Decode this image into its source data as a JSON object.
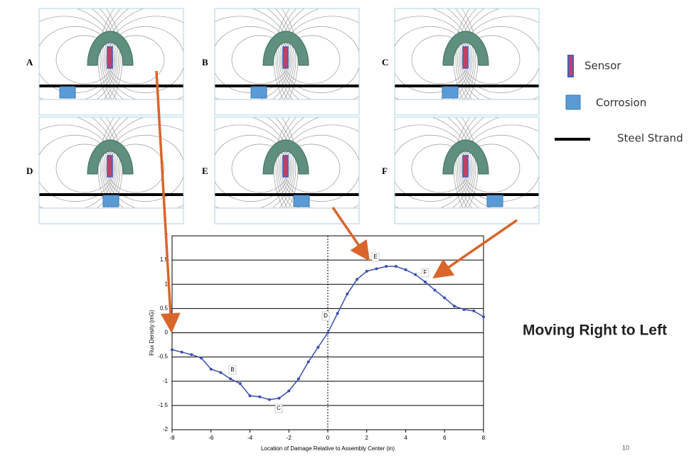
{
  "panels": [
    {
      "label": "A"
    },
    {
      "label": "B"
    },
    {
      "label": "C"
    },
    {
      "label": "D"
    },
    {
      "label": "E"
    },
    {
      "label": "F"
    }
  ],
  "legend": {
    "sensor": "Sensor",
    "corrosion": "Corrosion",
    "strand": "Steel Strand"
  },
  "caption": "Moving Right to Left",
  "page_number": "10",
  "chart_data": {
    "type": "line",
    "x_label": "Location of Damage Relative to Assembly Center (in)",
    "y_label": "Flux Density (mG)",
    "x": [
      -8,
      -7.5,
      -7,
      -6.5,
      -6,
      -5.5,
      -5,
      -4.5,
      -4,
      -3.5,
      -3,
      -2.5,
      -2,
      -1.5,
      -1,
      -0.5,
      0,
      0.5,
      1,
      1.5,
      2,
      2.5,
      3,
      3.5,
      4,
      4.5,
      5,
      5.5,
      6,
      6.5,
      7,
      7.5,
      8
    ],
    "values": [
      -0.35,
      -0.4,
      -0.45,
      -0.52,
      -0.75,
      -0.82,
      -0.95,
      -1.05,
      -1.3,
      -1.32,
      -1.38,
      -1.35,
      -1.2,
      -0.95,
      -0.6,
      -0.3,
      0,
      0.4,
      0.8,
      1.1,
      1.27,
      1.32,
      1.37,
      1.37,
      1.3,
      1.2,
      1.05,
      0.88,
      0.72,
      0.55,
      0.48,
      0.45,
      0.33
    ],
    "color": "#3a4fb0",
    "xlim": [
      -8,
      8
    ],
    "xticks": [
      -8,
      -6,
      -4,
      -2,
      0,
      2,
      4,
      6,
      8
    ],
    "ylim": [
      -2,
      2
    ],
    "yticks": [
      -2,
      -1.5,
      -1,
      -0.5,
      0,
      0.5,
      1,
      1.5,
      2
    ],
    "grid": true,
    "annotations": [
      "B",
      "C",
      "D",
      "E",
      "F"
    ]
  }
}
